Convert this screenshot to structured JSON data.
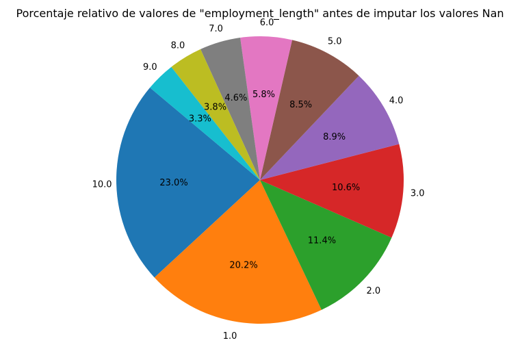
{
  "chart_data": {
    "type": "pie",
    "title": "Porcentaje relativo de valores de \"employment_length\" antes de imputar los valores Nan",
    "categories": [
      "10.0",
      "1.0",
      "2.0",
      "3.0",
      "4.0",
      "5.0",
      "6.0",
      "7.0",
      "8.0",
      "9.0"
    ],
    "values": [
      23.0,
      20.2,
      11.4,
      10.6,
      8.9,
      8.5,
      5.8,
      4.6,
      3.8,
      3.3
    ],
    "value_labels": [
      "23.0%",
      "20.2%",
      "11.4%",
      "10.6%",
      "8.9%",
      "8.5%",
      "5.8%",
      "4.6%",
      "3.8%",
      "3.3%"
    ],
    "colors": [
      "#1f77b4",
      "#ff7f0e",
      "#2ca02c",
      "#d62728",
      "#9467bd",
      "#8c564b",
      "#e377c2",
      "#7f7f7f",
      "#bcbd22",
      "#17becf"
    ],
    "start_angle_deg": 140,
    "direction": "counterclockwise",
    "legend": "none"
  }
}
